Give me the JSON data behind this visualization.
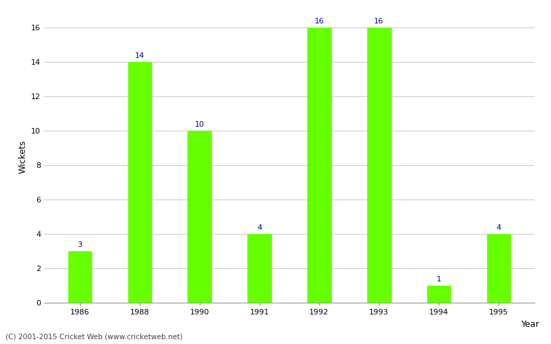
{
  "years": [
    "1986",
    "1988",
    "1990",
    "1991",
    "1992",
    "1993",
    "1994",
    "1995"
  ],
  "wickets": [
    3,
    14,
    10,
    4,
    16,
    16,
    1,
    4
  ],
  "bar_color": "#66ff00",
  "bar_edge_color": "#66ff00",
  "label_color": "#000080",
  "xlabel": "Year",
  "ylabel": "Wickets",
  "ylim": [
    0,
    17
  ],
  "yticks": [
    0,
    2,
    4,
    6,
    8,
    10,
    12,
    14,
    16
  ],
  "grid_color": "#cccccc",
  "background_color": "#ffffff",
  "footer_text": "(C) 2001-2015 Cricket Web (www.cricketweb.net)",
  "label_fontsize": 8,
  "axis_label_fontsize": 9,
  "tick_fontsize": 8,
  "bar_width": 0.4
}
